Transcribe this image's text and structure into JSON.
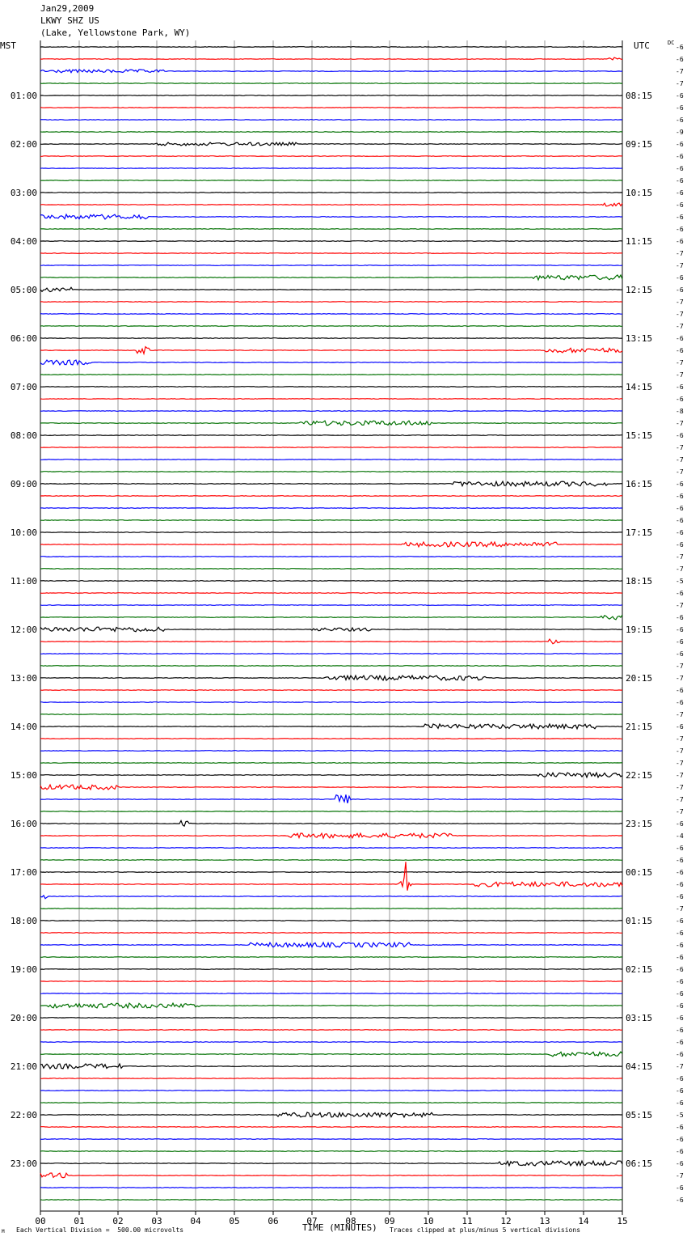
{
  "header": {
    "date": "Jan29,2009",
    "station": "LKWY SHZ US",
    "location": "(Lake, Yellowstone Park, WY)"
  },
  "left_timezone": "MST",
  "right_timezone": "UTC",
  "dc_label": "DC",
  "footer": {
    "scale_note": "Each Vertical Division =  500.00 microvolts",
    "axis_title": "TIME (MINUTES)",
    "clip_note": "Traces clipped at plus/minus 5 vertical divisions",
    "corner_mark": "M"
  },
  "chart_data": {
    "type": "line",
    "title": "",
    "xlabel": "TIME (MINUTES)",
    "xlim": [
      0,
      15
    ],
    "x_ticks": [
      "00",
      "01",
      "02",
      "03",
      "04",
      "05",
      "06",
      "07",
      "08",
      "09",
      "10",
      "11",
      "12",
      "13",
      "14",
      "15"
    ],
    "trace_count": 96,
    "trace_colors": [
      "#000000",
      "#ff0000",
      "#0000ff",
      "#007000"
    ],
    "left_hour_labels": [
      "01:00",
      "02:00",
      "03:00",
      "04:00",
      "05:00",
      "06:00",
      "07:00",
      "08:00",
      "09:00",
      "10:00",
      "11:00",
      "12:00",
      "13:00",
      "14:00",
      "15:00",
      "16:00",
      "17:00",
      "18:00",
      "19:00",
      "20:00",
      "21:00",
      "22:00",
      "23:00"
    ],
    "right_hour_labels": [
      "08:15",
      "09:15",
      "10:15",
      "11:15",
      "12:15",
      "13:15",
      "14:15",
      "15:15",
      "16:15",
      "17:15",
      "18:15",
      "19:15",
      "20:15",
      "21:15",
      "22:15",
      "23:15",
      "00:15",
      "01:15",
      "02:15",
      "03:15",
      "04:15",
      "05:15",
      "06:15"
    ],
    "dc_offsets": [
      "-6",
      "-6",
      "-7",
      "-7",
      "-6",
      "-6",
      "-6",
      "-9",
      "-6",
      "-6",
      "-6",
      "-6",
      "-6",
      "-6",
      "-6",
      "-6",
      "-6",
      "-7",
      "-7",
      "-6",
      "-6",
      "-7",
      "-7",
      "-7",
      "-6",
      "-6",
      "-7",
      "-7",
      "-6",
      "-6",
      "-8",
      "-7",
      "-6",
      "-7",
      "-7",
      "-7",
      "-6",
      "-6",
      "-6",
      "-6",
      "-6",
      "-6",
      "-7",
      "-7",
      "-5",
      "-6",
      "-7",
      "-6",
      "-6",
      "-6",
      "-6",
      "-7",
      "-7",
      "-6",
      "-6",
      "-7",
      "-6",
      "-7",
      "-7",
      "-7",
      "-7",
      "-7",
      "-7",
      "-7",
      "-6",
      "-4",
      "-6",
      "-6",
      "-6",
      "-6",
      "-6",
      "-7",
      "-6",
      "-6",
      "-6",
      "-6",
      "-6",
      "-6",
      "-6",
      "-6",
      "-6",
      "-6",
      "-6",
      "-6",
      "-7",
      "-6",
      "-6",
      "-6",
      "-5",
      "-6",
      "-6",
      "-6",
      "-6",
      "-7",
      "-6",
      "-6"
    ],
    "bursts": [
      {
        "trace": 1,
        "start": 14.6,
        "end": 15.0,
        "amp": 2
      },
      {
        "trace": 2,
        "start": 0.0,
        "end": 3.2,
        "amp": 2
      },
      {
        "trace": 8,
        "start": 3.0,
        "end": 6.6,
        "amp": 2
      },
      {
        "trace": 13,
        "start": 14.5,
        "end": 15.0,
        "amp": 2
      },
      {
        "trace": 14,
        "start": 0.0,
        "end": 2.8,
        "amp": 3
      },
      {
        "trace": 19,
        "start": 12.7,
        "end": 15.0,
        "amp": 3
      },
      {
        "trace": 20,
        "start": 0.0,
        "end": 0.8,
        "amp": 3
      },
      {
        "trace": 25,
        "start": 2.5,
        "end": 2.8,
        "amp": 6
      },
      {
        "trace": 25,
        "start": 13.0,
        "end": 15.0,
        "amp": 3
      },
      {
        "trace": 26,
        "start": 0.0,
        "end": 1.3,
        "amp": 3
      },
      {
        "trace": 31,
        "start": 6.7,
        "end": 10.1,
        "amp": 3
      },
      {
        "trace": 36,
        "start": 10.6,
        "end": 14.6,
        "amp": 3
      },
      {
        "trace": 41,
        "start": 9.3,
        "end": 13.3,
        "amp": 3
      },
      {
        "trace": 47,
        "start": 14.4,
        "end": 15.0,
        "amp": 3
      },
      {
        "trace": 48,
        "start": 0.0,
        "end": 3.2,
        "amp": 3
      },
      {
        "trace": 48,
        "start": 6.9,
        "end": 8.6,
        "amp": 2
      },
      {
        "trace": 49,
        "start": 13.1,
        "end": 13.4,
        "amp": 3
      },
      {
        "trace": 52,
        "start": 7.3,
        "end": 11.5,
        "amp": 3
      },
      {
        "trace": 56,
        "start": 9.9,
        "end": 14.3,
        "amp": 3
      },
      {
        "trace": 60,
        "start": 12.8,
        "end": 15.0,
        "amp": 3
      },
      {
        "trace": 61,
        "start": 0.0,
        "end": 2.0,
        "amp": 3
      },
      {
        "trace": 62,
        "start": 7.6,
        "end": 8.0,
        "amp": 6
      },
      {
        "trace": 64,
        "start": 3.6,
        "end": 3.9,
        "amp": 4
      },
      {
        "trace": 65,
        "start": 6.4,
        "end": 10.6,
        "amp": 3
      },
      {
        "trace": 69,
        "start": 9.25,
        "end": 9.55,
        "amp": 45
      },
      {
        "trace": 69,
        "start": 11.2,
        "end": 15.0,
        "amp": 3
      },
      {
        "trace": 70,
        "start": 0.0,
        "end": 0.2,
        "amp": 3
      },
      {
        "trace": 74,
        "start": 5.4,
        "end": 9.5,
        "amp": 3
      },
      {
        "trace": 79,
        "start": 0.2,
        "end": 4.1,
        "amp": 3
      },
      {
        "trace": 83,
        "start": 13.1,
        "end": 15.0,
        "amp": 3
      },
      {
        "trace": 84,
        "start": 0.0,
        "end": 2.1,
        "amp": 3
      },
      {
        "trace": 88,
        "start": 6.1,
        "end": 10.1,
        "amp": 3
      },
      {
        "trace": 92,
        "start": 11.8,
        "end": 15.0,
        "amp": 3
      },
      {
        "trace": 93,
        "start": 0.0,
        "end": 0.7,
        "amp": 3
      }
    ]
  }
}
